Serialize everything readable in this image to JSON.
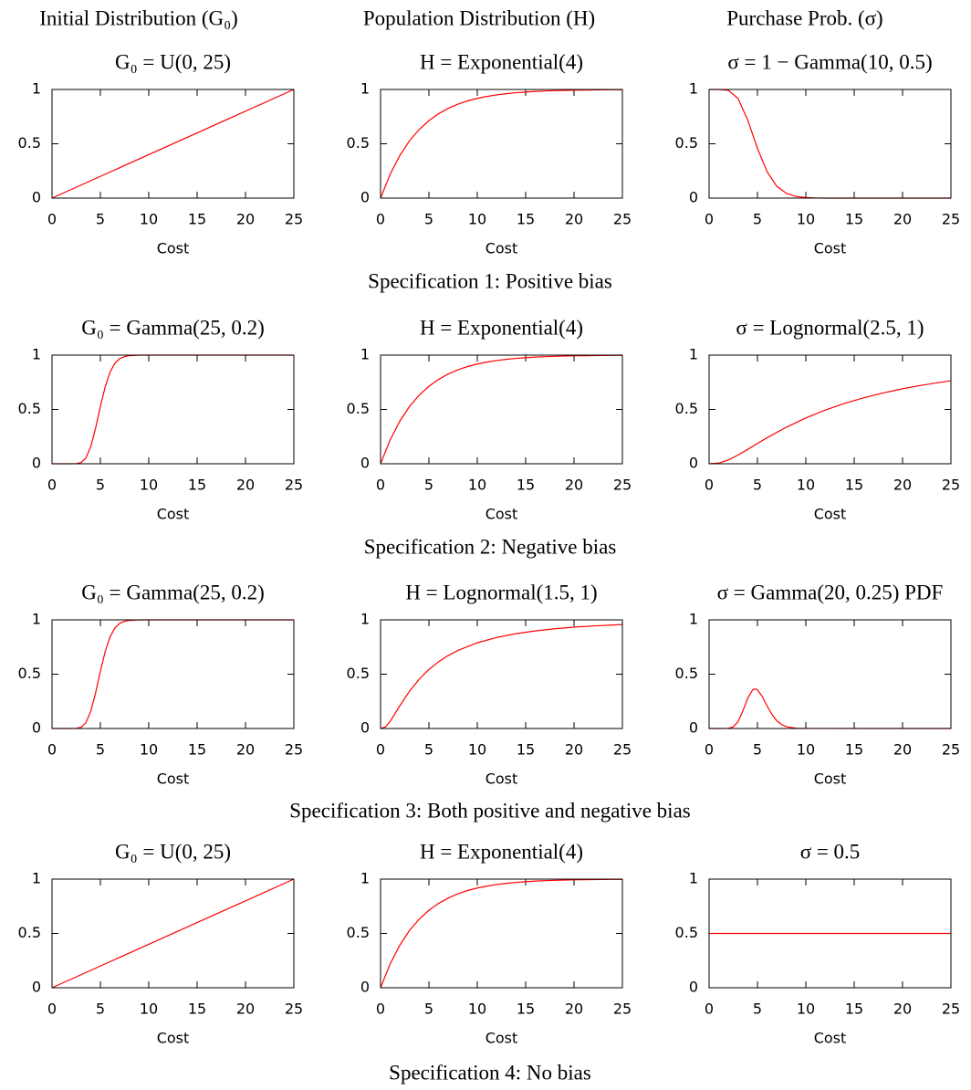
{
  "column_headers": [
    "Initial Distribution (G₀)",
    "Population Distribution (H)",
    "Purchase Prob. (σ)"
  ],
  "row_captions": [
    "Specification 1: Positive bias",
    "Specification 2: Negative bias",
    "Specification 3: Both positive and negative bias",
    "Specification 4: No bias"
  ],
  "chart_data": [
    {
      "type": "line",
      "title": "G₀ = U(0, 25)",
      "xlabel": "Cost",
      "color": "#ff0000",
      "x": [
        0,
        25
      ],
      "values": [
        0,
        1
      ],
      "xlim": [
        0,
        25
      ],
      "ylim": [
        0,
        1
      ],
      "xticks": [
        0,
        5,
        10,
        15,
        20,
        25
      ],
      "yticks": [
        0,
        0.5,
        1
      ]
    },
    {
      "type": "line",
      "title": "H = Exponential(4)",
      "xlabel": "Cost",
      "color": "#ff0000",
      "x": [
        0,
        1,
        2,
        3,
        4,
        5,
        6,
        7,
        8,
        9,
        10,
        11,
        12,
        13,
        14,
        15,
        16,
        17,
        18,
        19,
        20,
        21,
        22,
        23,
        24,
        25
      ],
      "values": [
        0,
        0.221,
        0.393,
        0.528,
        0.632,
        0.713,
        0.777,
        0.826,
        0.865,
        0.895,
        0.918,
        0.936,
        0.95,
        0.961,
        0.97,
        0.976,
        0.982,
        0.986,
        0.989,
        0.991,
        0.993,
        0.995,
        0.996,
        0.997,
        0.998,
        0.998
      ],
      "xlim": [
        0,
        25
      ],
      "ylim": [
        0,
        1
      ],
      "xticks": [
        0,
        5,
        10,
        15,
        20,
        25
      ],
      "yticks": [
        0,
        0.5,
        1
      ]
    },
    {
      "type": "line",
      "title": "σ = 1 − Gamma(10, 0.5)",
      "xlabel": "Cost",
      "color": "#ff0000",
      "x": [
        0,
        1,
        2,
        3,
        4,
        5,
        6,
        7,
        8,
        9,
        10,
        11,
        12,
        25
      ],
      "values": [
        1,
        1,
        0.992,
        0.916,
        0.717,
        0.458,
        0.242,
        0.109,
        0.043,
        0.015,
        0.005,
        0.001,
        0,
        0
      ],
      "xlim": [
        0,
        25
      ],
      "ylim": [
        0,
        1
      ],
      "xticks": [
        0,
        5,
        10,
        15,
        20,
        25
      ],
      "yticks": [
        0,
        0.5,
        1
      ]
    },
    {
      "type": "line",
      "title": "G₀ = Gamma(25, 0.2)",
      "xlabel": "Cost",
      "color": "#ff0000",
      "x": [
        0,
        1,
        2,
        2.5,
        3,
        3.5,
        4,
        4.5,
        5,
        5.5,
        6,
        6.5,
        7,
        7.5,
        8,
        9,
        10,
        25
      ],
      "values": [
        0,
        0,
        0.0001,
        0.0012,
        0.011,
        0.053,
        0.156,
        0.326,
        0.527,
        0.709,
        0.844,
        0.925,
        0.968,
        0.987,
        0.995,
        1,
        1,
        1
      ],
      "xlim": [
        0,
        25
      ],
      "ylim": [
        0,
        1
      ],
      "xticks": [
        0,
        5,
        10,
        15,
        20,
        25
      ],
      "yticks": [
        0,
        0.5,
        1
      ]
    },
    {
      "type": "line",
      "title": "H = Exponential(4)",
      "xlabel": "Cost",
      "color": "#ff0000",
      "x": [
        0,
        1,
        2,
        3,
        4,
        5,
        6,
        7,
        8,
        9,
        10,
        11,
        12,
        13,
        14,
        15,
        16,
        17,
        18,
        19,
        20,
        21,
        22,
        23,
        24,
        25
      ],
      "values": [
        0,
        0.221,
        0.393,
        0.528,
        0.632,
        0.713,
        0.777,
        0.826,
        0.865,
        0.895,
        0.918,
        0.936,
        0.95,
        0.961,
        0.97,
        0.976,
        0.982,
        0.986,
        0.989,
        0.991,
        0.993,
        0.995,
        0.996,
        0.997,
        0.998,
        0.998
      ],
      "xlim": [
        0,
        25
      ],
      "ylim": [
        0,
        1
      ],
      "xticks": [
        0,
        5,
        10,
        15,
        20,
        25
      ],
      "yticks": [
        0,
        0.5,
        1
      ]
    },
    {
      "type": "line",
      "title": "σ = Lognormal(2.5, 1)",
      "xlabel": "Cost",
      "color": "#ff0000",
      "x": [
        0,
        1,
        2,
        3,
        4,
        5,
        6,
        8,
        10,
        12,
        14,
        16,
        18,
        20,
        22,
        25
      ],
      "values": [
        0,
        0.006,
        0.035,
        0.081,
        0.133,
        0.187,
        0.24,
        0.337,
        0.422,
        0.494,
        0.555,
        0.608,
        0.652,
        0.69,
        0.723,
        0.764
      ],
      "xlim": [
        0,
        25
      ],
      "ylim": [
        0,
        1
      ],
      "xticks": [
        0,
        5,
        10,
        15,
        20,
        25
      ],
      "yticks": [
        0,
        0.5,
        1
      ]
    },
    {
      "type": "line",
      "title": "G₀ = Gamma(25, 0.2)",
      "xlabel": "Cost",
      "color": "#ff0000",
      "x": [
        0,
        1,
        2,
        2.5,
        3,
        3.5,
        4,
        4.5,
        5,
        5.5,
        6,
        6.5,
        7,
        7.5,
        8,
        9,
        10,
        25
      ],
      "values": [
        0,
        0,
        0.0001,
        0.0012,
        0.011,
        0.053,
        0.156,
        0.326,
        0.527,
        0.709,
        0.844,
        0.925,
        0.968,
        0.987,
        0.995,
        1,
        1,
        1
      ],
      "xlim": [
        0,
        25
      ],
      "ylim": [
        0,
        1
      ],
      "xticks": [
        0,
        5,
        10,
        15,
        20,
        25
      ],
      "yticks": [
        0,
        0.5,
        1
      ]
    },
    {
      "type": "line",
      "title": "H = Lognormal(1.5, 1)",
      "xlabel": "Cost",
      "color": "#ff0000",
      "x": [
        0,
        0.5,
        1,
        2,
        3,
        4,
        5,
        6,
        7,
        8,
        10,
        12,
        14,
        16,
        18,
        20,
        22,
        25
      ],
      "values": [
        0,
        0.014,
        0.067,
        0.21,
        0.344,
        0.455,
        0.543,
        0.615,
        0.672,
        0.719,
        0.789,
        0.838,
        0.873,
        0.898,
        0.918,
        0.933,
        0.944,
        0.957
      ],
      "xlim": [
        0,
        25
      ],
      "ylim": [
        0,
        1
      ],
      "xticks": [
        0,
        5,
        10,
        15,
        20,
        25
      ],
      "yticks": [
        0,
        0.5,
        1
      ]
    },
    {
      "type": "line",
      "title": "σ = Gamma(20, 0.25) PDF",
      "xlabel": "Cost",
      "color": "#ff0000",
      "x": [
        0,
        1,
        2,
        2.5,
        3,
        3.5,
        4,
        4.5,
        4.75,
        5,
        5.5,
        6,
        6.5,
        7,
        7.5,
        8,
        9,
        10,
        25
      ],
      "values": [
        0,
        0,
        0.0016,
        0.0149,
        0.0645,
        0.1635,
        0.28,
        0.355,
        0.364,
        0.355,
        0.294,
        0.208,
        0.129,
        0.0712,
        0.0358,
        0.0165,
        0.0028,
        0.0004,
        0
      ],
      "xlim": [
        0,
        25
      ],
      "ylim": [
        0,
        1
      ],
      "xticks": [
        0,
        5,
        10,
        15,
        20,
        25
      ],
      "yticks": [
        0,
        0.5,
        1
      ]
    },
    {
      "type": "line",
      "title": "G₀ = U(0, 25)",
      "xlabel": "Cost",
      "color": "#ff0000",
      "x": [
        0,
        25
      ],
      "values": [
        0,
        1
      ],
      "xlim": [
        0,
        25
      ],
      "ylim": [
        0,
        1
      ],
      "xticks": [
        0,
        5,
        10,
        15,
        20,
        25
      ],
      "yticks": [
        0,
        0.5,
        1
      ]
    },
    {
      "type": "line",
      "title": "H = Exponential(4)",
      "xlabel": "Cost",
      "color": "#ff0000",
      "x": [
        0,
        1,
        2,
        3,
        4,
        5,
        6,
        7,
        8,
        9,
        10,
        11,
        12,
        13,
        14,
        15,
        16,
        17,
        18,
        19,
        20,
        21,
        22,
        23,
        24,
        25
      ],
      "values": [
        0,
        0.221,
        0.393,
        0.528,
        0.632,
        0.713,
        0.777,
        0.826,
        0.865,
        0.895,
        0.918,
        0.936,
        0.95,
        0.961,
        0.97,
        0.976,
        0.982,
        0.986,
        0.989,
        0.991,
        0.993,
        0.995,
        0.996,
        0.997,
        0.998,
        0.998
      ],
      "xlim": [
        0,
        25
      ],
      "ylim": [
        0,
        1
      ],
      "xticks": [
        0,
        5,
        10,
        15,
        20,
        25
      ],
      "yticks": [
        0,
        0.5,
        1
      ]
    },
    {
      "type": "line",
      "title": "σ = 0.5",
      "xlabel": "Cost",
      "color": "#ff0000",
      "x": [
        0,
        25
      ],
      "values": [
        0.5,
        0.5
      ],
      "xlim": [
        0,
        25
      ],
      "ylim": [
        0,
        1
      ],
      "xticks": [
        0,
        5,
        10,
        15,
        20,
        25
      ],
      "yticks": [
        0,
        0.5,
        1
      ]
    }
  ]
}
